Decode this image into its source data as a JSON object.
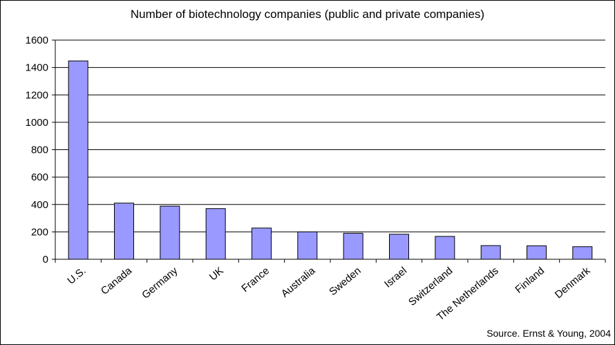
{
  "chart_data": {
    "type": "bar",
    "title": "Number of biotechnology companies (public and private companies)",
    "categories": [
      "U.S.",
      "Canada",
      "Germany",
      "UK",
      "France",
      "Australia",
      "Sweden",
      "Israel",
      "Switzerland",
      "The Netherlands",
      "Finland",
      "Denmark"
    ],
    "values": [
      1448,
      410,
      388,
      370,
      228,
      200,
      190,
      183,
      167,
      100,
      98,
      92
    ],
    "ylim": [
      0,
      1600
    ],
    "yticks": [
      "0",
      "200",
      "400",
      "600",
      "800",
      "1000",
      "1200",
      "1400",
      "1600"
    ],
    "xlabel": "",
    "ylabel": "",
    "grid": true,
    "bar_color": "#9999ff",
    "source": "Source. Ernst & Young, 2004"
  }
}
